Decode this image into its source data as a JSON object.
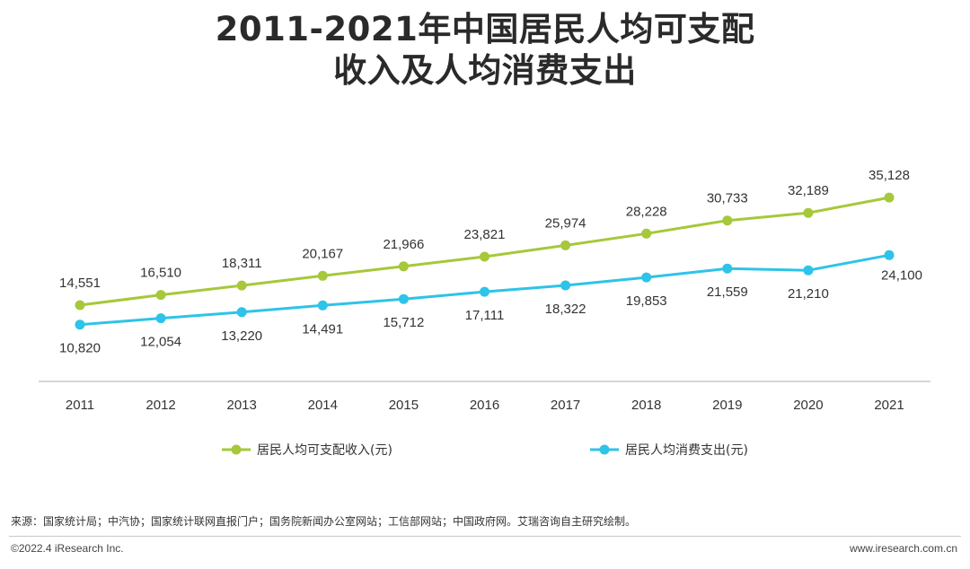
{
  "title": {
    "line1": "2011-2021年中国居民人均可支配",
    "line2": "收入及人均消费支出"
  },
  "chart_data": {
    "type": "line",
    "categories": [
      "2011",
      "2012",
      "2013",
      "2014",
      "2015",
      "2016",
      "2017",
      "2018",
      "2019",
      "2020",
      "2021"
    ],
    "series": [
      {
        "name": "居民人均可支配收入(元)",
        "color": "#a6c83a",
        "values": [
          14551,
          16510,
          18311,
          20167,
          21966,
          23821,
          25974,
          28228,
          30733,
          32189,
          35128
        ],
        "labels": [
          "14,551",
          "16,510",
          "18,311",
          "20,167",
          "21,966",
          "23,821",
          "25,974",
          "28,228",
          "30,733",
          "32,189",
          "35,128"
        ]
      },
      {
        "name": "居民人均消费支出(元)",
        "color": "#2ec3e8",
        "values": [
          10820,
          12054,
          13220,
          14491,
          15712,
          17111,
          18322,
          19853,
          21559,
          21210,
          24100
        ],
        "labels": [
          "10,820",
          "12,054",
          "13,220",
          "14,491",
          "15,712",
          "17,111",
          "18,322",
          "19,853",
          "21,559",
          "21,210",
          "24,100"
        ]
      }
    ],
    "legend_position": "bottom",
    "grid": false,
    "y_axis_visible": false
  },
  "footer": {
    "source": "来源：国家统计局；中汽协；国家统计联网直报门户；国务院新闻办公室网站；工信部网站；中国政府网。艾瑞咨询自主研究绘制。",
    "copyright": "©2022.4 iResearch Inc.",
    "website": "www.iresearch.com.cn"
  }
}
